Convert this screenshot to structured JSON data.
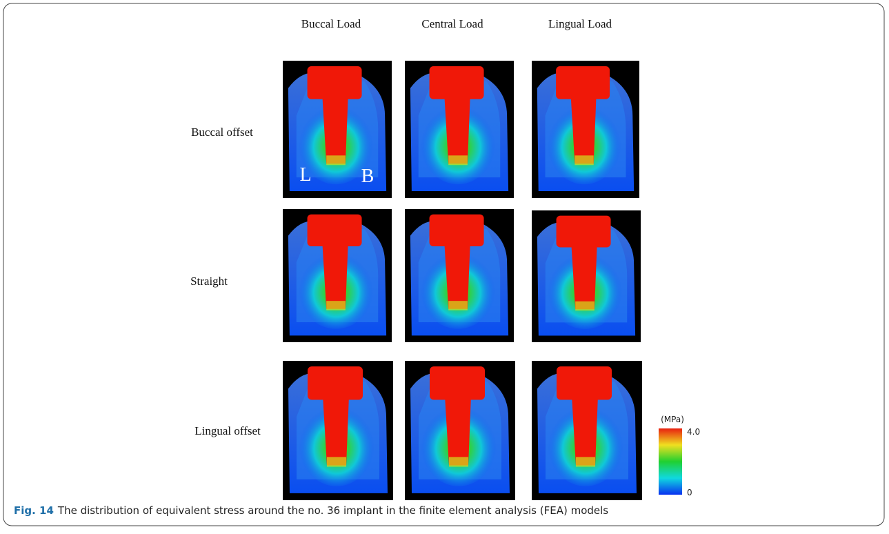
{
  "columns": [
    "Buccal Load",
    "Central Load",
    "Lingual Load"
  ],
  "rows": [
    "Buccal offset",
    "Straight",
    "Lingual offset"
  ],
  "panel_labels": [
    "L",
    "B"
  ],
  "colorbar": {
    "unit": "(MPa)",
    "max": "4.0",
    "min": "0"
  },
  "caption": {
    "label": "Fig. 14",
    "text": "The distribution of equivalent stress around the no. 36 implant in the finite element analysis (FEA) models"
  }
}
